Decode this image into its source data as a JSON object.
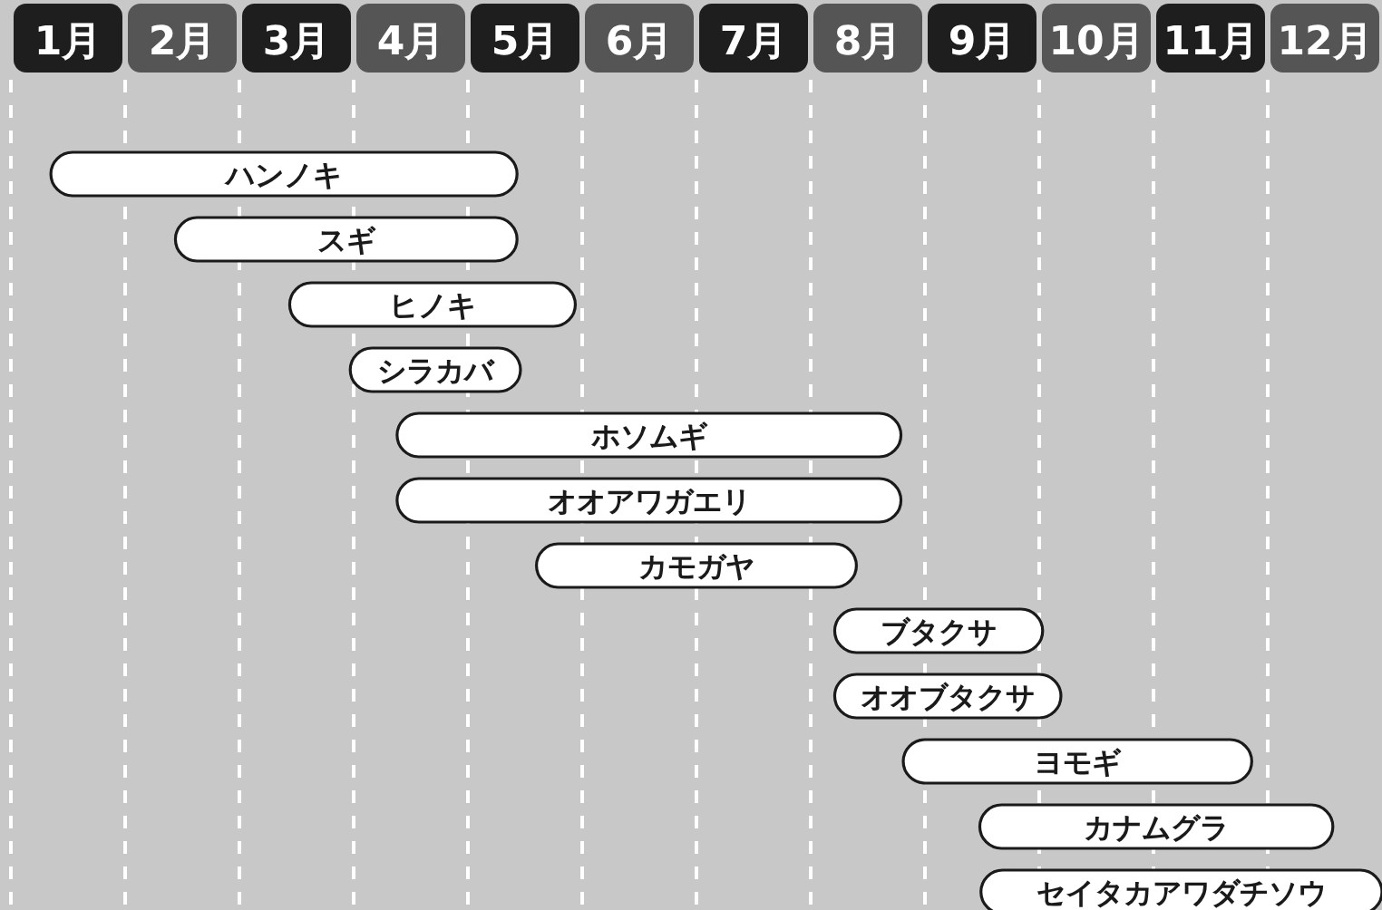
{
  "chart_data": {
    "type": "bar",
    "orientation": "horizontal",
    "color": "#ffffff",
    "categories": [
      "ハンノキ",
      "スギ",
      "ヒノキ",
      "シラカバ",
      "ホソムギ",
      "オオアワガエリ",
      "カモガヤ",
      "ブタクサ",
      "オオブタクサ",
      "ヨモギ",
      "カナムグラ",
      "セイタカアワダチソウ"
    ],
    "base": [
      1.35,
      2.44,
      3.44,
      3.97,
      4.38,
      4.38,
      5.6,
      8.21,
      8.21,
      8.81,
      9.48,
      9.49
    ],
    "values": [
      4.08,
      2.99,
      2.5,
      1.49,
      4.41,
      4.41,
      2.8,
      1.82,
      1.98,
      3.05,
      3.09,
      3.51
    ],
    "xlim": [
      1,
      13
    ],
    "xticks": [
      {
        "value": 1.5,
        "label": "1月"
      },
      {
        "value": 2.5,
        "label": "2月"
      },
      {
        "value": 3.5,
        "label": "3月"
      },
      {
        "value": 4.5,
        "label": "4月"
      },
      {
        "value": 5.5,
        "label": "5月"
      },
      {
        "value": 6.5,
        "label": "6月"
      },
      {
        "value": 7.5,
        "label": "7月"
      },
      {
        "value": 8.5,
        "label": "8月"
      },
      {
        "value": 9.5,
        "label": "9月"
      },
      {
        "value": 10.5,
        "label": "10月"
      },
      {
        "value": 11.5,
        "label": "11月"
      },
      {
        "value": 12.5,
        "label": "12月"
      },
      {
        "value": 1,
        "label": null
      },
      {
        "value": 2,
        "label": null
      },
      {
        "value": 3,
        "label": null
      },
      {
        "value": 4,
        "label": null
      },
      {
        "value": 5,
        "label": null
      },
      {
        "value": 6,
        "label": null
      },
      {
        "value": 7,
        "label": null
      },
      {
        "value": 8,
        "label": null
      },
      {
        "value": 9,
        "label": null
      },
      {
        "value": 10,
        "label": null
      },
      {
        "value": 11,
        "label": null
      },
      {
        "value": 12,
        "label": null
      }
    ],
    "grid": "x"
  }
}
